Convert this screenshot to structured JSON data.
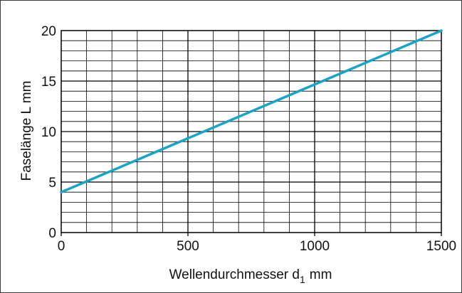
{
  "chart_data": {
    "type": "line",
    "title": "",
    "xlabel": "Wellendurchmesser d",
    "xlabel_subscript": "1",
    "xlabel_unit": "mm",
    "ylabel": "Faselänge L mm",
    "xlim": [
      0,
      1500
    ],
    "ylim": [
      0,
      20
    ],
    "x_ticks": [
      "0",
      "500",
      "1000",
      "1500"
    ],
    "y_ticks": [
      "0",
      "5",
      "10",
      "15",
      "20"
    ],
    "grid": true,
    "series": [
      {
        "x": [
          0,
          1500
        ],
        "y": [
          4,
          20
        ],
        "color": "#1aa3c4"
      }
    ]
  }
}
